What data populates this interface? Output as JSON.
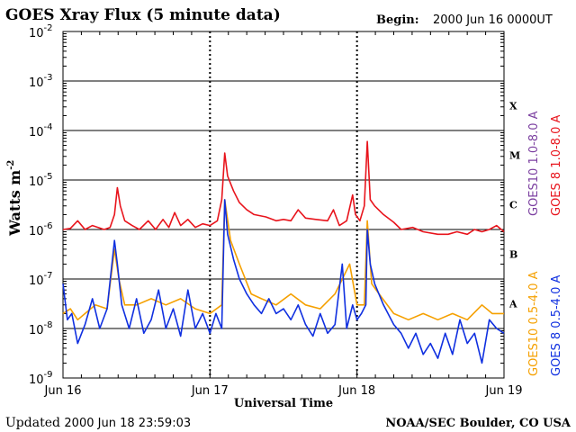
{
  "chart_data": {
    "type": "line",
    "title": "GOES Xray Flux (5 minute data)",
    "begin_label": "Begin:",
    "begin_value": "2000 Jun 16 0000UT",
    "xlabel": "Universal Time",
    "ylabel": "Watts m",
    "ylabel_superscript": "-2",
    "yscale": "log",
    "ylim": [
      1e-09,
      0.01
    ],
    "xlim_days": [
      0,
      3
    ],
    "x_ticks": [
      {
        "day": 0,
        "label": "Jun 16"
      },
      {
        "day": 1,
        "label": "Jun 17"
      },
      {
        "day": 2,
        "label": "Jun 18"
      },
      {
        "day": 3,
        "label": "Jun 19"
      }
    ],
    "y_ticks": [
      {
        "exp": -9,
        "base": "10",
        "sup": "-9"
      },
      {
        "exp": -8,
        "base": "10",
        "sup": "-8"
      },
      {
        "exp": -7,
        "base": "10",
        "sup": "-7"
      },
      {
        "exp": -6,
        "base": "10",
        "sup": "-6"
      },
      {
        "exp": -5,
        "base": "10",
        "sup": "-5"
      },
      {
        "exp": -4,
        "base": "10",
        "sup": "-4"
      },
      {
        "exp": -3,
        "base": "10",
        "sup": "-3"
      },
      {
        "exp": -2,
        "base": "10",
        "sup": "-2"
      }
    ],
    "flare_classes": [
      {
        "label": "A",
        "exp": -7.5
      },
      {
        "label": "B",
        "exp": -6.5
      },
      {
        "label": "C",
        "exp": -5.5
      },
      {
        "label": "M",
        "exp": -4.5
      },
      {
        "label": "X",
        "exp": -3.5
      }
    ],
    "gridlines_exp": [
      -8,
      -7,
      -6,
      -5,
      -4,
      -3
    ],
    "series": [
      {
        "name": "GOES10 1.0-8.0 A",
        "color": "#7b3fa0",
        "values": []
      },
      {
        "name": "GOES 8 1.0-8.0 A",
        "color": "#e8141c",
        "points": [
          [
            0,
            1e-06
          ],
          [
            0.05,
            1.05e-06
          ],
          [
            0.1,
            1.5e-06
          ],
          [
            0.15,
            1e-06
          ],
          [
            0.2,
            1.2e-06
          ],
          [
            0.28,
            1e-06
          ],
          [
            0.32,
            1.1e-06
          ],
          [
            0.35,
            2e-06
          ],
          [
            0.37,
            7e-06
          ],
          [
            0.39,
            3e-06
          ],
          [
            0.42,
            1.5e-06
          ],
          [
            0.47,
            1.2e-06
          ],
          [
            0.52,
            1e-06
          ],
          [
            0.58,
            1.5e-06
          ],
          [
            0.63,
            1e-06
          ],
          [
            0.68,
            1.6e-06
          ],
          [
            0.72,
            1.1e-06
          ],
          [
            0.76,
            2.2e-06
          ],
          [
            0.8,
            1.2e-06
          ],
          [
            0.85,
            1.6e-06
          ],
          [
            0.9,
            1.1e-06
          ],
          [
            0.95,
            1.3e-06
          ],
          [
            1.0,
            1.2e-06
          ],
          [
            1.05,
            1.5e-06
          ],
          [
            1.08,
            4e-06
          ],
          [
            1.1,
            3.5e-05
          ],
          [
            1.12,
            1.2e-05
          ],
          [
            1.16,
            6e-06
          ],
          [
            1.2,
            3.5e-06
          ],
          [
            1.25,
            2.5e-06
          ],
          [
            1.3,
            2e-06
          ],
          [
            1.38,
            1.8e-06
          ],
          [
            1.45,
            1.5e-06
          ],
          [
            1.5,
            1.6e-06
          ],
          [
            1.55,
            1.5e-06
          ],
          [
            1.6,
            2.5e-06
          ],
          [
            1.65,
            1.7e-06
          ],
          [
            1.72,
            1.6e-06
          ],
          [
            1.8,
            1.5e-06
          ],
          [
            1.84,
            2.5e-06
          ],
          [
            1.88,
            1.2e-06
          ],
          [
            1.93,
            1.5e-06
          ],
          [
            1.97,
            5e-06
          ],
          [
            1.99,
            2e-06
          ],
          [
            2.02,
            1.5e-06
          ],
          [
            2.05,
            3e-06
          ],
          [
            2.07,
            6e-05
          ],
          [
            2.09,
            4e-06
          ],
          [
            2.12,
            3e-06
          ],
          [
            2.18,
            2e-06
          ],
          [
            2.25,
            1.4e-06
          ],
          [
            2.3,
            1e-06
          ],
          [
            2.38,
            1.1e-06
          ],
          [
            2.45,
            9e-07
          ],
          [
            2.55,
            8e-07
          ],
          [
            2.62,
            8e-07
          ],
          [
            2.68,
            9e-07
          ],
          [
            2.75,
            8e-07
          ],
          [
            2.8,
            1e-06
          ],
          [
            2.85,
            9e-07
          ],
          [
            2.9,
            1e-06
          ],
          [
            2.95,
            1.2e-06
          ],
          [
            3.0,
            9e-07
          ]
        ]
      },
      {
        "name": "GOES10 0.5-4.0 A",
        "color": "#f5a000",
        "points": [
          [
            0,
            2e-08
          ],
          [
            0.05,
            2.5e-08
          ],
          [
            0.1,
            1.5e-08
          ],
          [
            0.15,
            2e-08
          ],
          [
            0.22,
            3e-08
          ],
          [
            0.3,
            2.5e-08
          ],
          [
            0.35,
            4e-07
          ],
          [
            0.38,
            1e-07
          ],
          [
            0.42,
            3e-08
          ],
          [
            0.5,
            3e-08
          ],
          [
            0.6,
            4e-08
          ],
          [
            0.7,
            3e-08
          ],
          [
            0.8,
            4e-08
          ],
          [
            0.9,
            2.5e-08
          ],
          [
            1.0,
            2e-08
          ],
          [
            1.08,
            3e-08
          ],
          [
            1.1,
            4e-06
          ],
          [
            1.14,
            6e-07
          ],
          [
            1.2,
            2e-07
          ],
          [
            1.28,
            5e-08
          ],
          [
            1.35,
            4e-08
          ],
          [
            1.45,
            3e-08
          ],
          [
            1.55,
            5e-08
          ],
          [
            1.65,
            3e-08
          ],
          [
            1.75,
            2.5e-08
          ],
          [
            1.85,
            5e-08
          ],
          [
            1.95,
            2e-07
          ],
          [
            2.0,
            3e-08
          ],
          [
            2.05,
            3e-08
          ],
          [
            2.07,
            1.5e-06
          ],
          [
            2.1,
            8e-08
          ],
          [
            2.15,
            5e-08
          ],
          [
            2.25,
            2e-08
          ],
          [
            2.35,
            1.5e-08
          ],
          [
            2.45,
            2e-08
          ],
          [
            2.55,
            1.5e-08
          ],
          [
            2.65,
            2e-08
          ],
          [
            2.75,
            1.5e-08
          ],
          [
            2.85,
            3e-08
          ],
          [
            2.92,
            2e-08
          ],
          [
            3.0,
            2e-08
          ]
        ]
      },
      {
        "name": "GOES 8 0.5-4.0 A",
        "color": "#1030e0",
        "points": [
          [
            0,
            8e-08
          ],
          [
            0.03,
            1.5e-08
          ],
          [
            0.06,
            2e-08
          ],
          [
            0.1,
            5e-09
          ],
          [
            0.15,
            1.2e-08
          ],
          [
            0.2,
            4e-08
          ],
          [
            0.25,
            1e-08
          ],
          [
            0.3,
            2.5e-08
          ],
          [
            0.35,
            6e-07
          ],
          [
            0.37,
            2e-07
          ],
          [
            0.4,
            3e-08
          ],
          [
            0.45,
            1e-08
          ],
          [
            0.5,
            4e-08
          ],
          [
            0.55,
            8e-09
          ],
          [
            0.6,
            1.5e-08
          ],
          [
            0.65,
            6e-08
          ],
          [
            0.7,
            1e-08
          ],
          [
            0.75,
            2.5e-08
          ],
          [
            0.8,
            7e-09
          ],
          [
            0.85,
            6e-08
          ],
          [
            0.9,
            1e-08
          ],
          [
            0.95,
            2e-08
          ],
          [
            1.0,
            8e-09
          ],
          [
            1.04,
            2e-08
          ],
          [
            1.08,
            1e-08
          ],
          [
            1.1,
            4e-06
          ],
          [
            1.12,
            8e-07
          ],
          [
            1.16,
            2.5e-07
          ],
          [
            1.2,
            1e-07
          ],
          [
            1.25,
            5e-08
          ],
          [
            1.3,
            3e-08
          ],
          [
            1.35,
            2e-08
          ],
          [
            1.4,
            4e-08
          ],
          [
            1.45,
            2e-08
          ],
          [
            1.5,
            2.5e-08
          ],
          [
            1.55,
            1.5e-08
          ],
          [
            1.6,
            3e-08
          ],
          [
            1.65,
            1.2e-08
          ],
          [
            1.7,
            7e-09
          ],
          [
            1.75,
            2e-08
          ],
          [
            1.8,
            8e-09
          ],
          [
            1.85,
            1.2e-08
          ],
          [
            1.9,
            2e-07
          ],
          [
            1.93,
            1e-08
          ],
          [
            1.97,
            3e-08
          ],
          [
            2.0,
            1.5e-08
          ],
          [
            2.03,
            2e-08
          ],
          [
            2.06,
            3e-08
          ],
          [
            2.07,
            1e-06
          ],
          [
            2.09,
            2e-07
          ],
          [
            2.12,
            8e-08
          ],
          [
            2.18,
            3e-08
          ],
          [
            2.25,
            1.2e-08
          ],
          [
            2.3,
            8e-09
          ],
          [
            2.35,
            4e-09
          ],
          [
            2.4,
            8e-09
          ],
          [
            2.45,
            3e-09
          ],
          [
            2.5,
            5e-09
          ],
          [
            2.55,
            2.5e-09
          ],
          [
            2.6,
            8e-09
          ],
          [
            2.65,
            3e-09
          ],
          [
            2.7,
            1.5e-08
          ],
          [
            2.75,
            5e-09
          ],
          [
            2.8,
            8e-09
          ],
          [
            2.85,
            2e-09
          ],
          [
            2.9,
            1.5e-08
          ],
          [
            2.95,
            1e-08
          ],
          [
            3.0,
            8e-09
          ]
        ]
      }
    ]
  },
  "footer": {
    "updated_label": "Updated",
    "updated_value": "2000 Jun 18 23:59:03",
    "credit": "NOAA/SEC Boulder, CO USA"
  }
}
